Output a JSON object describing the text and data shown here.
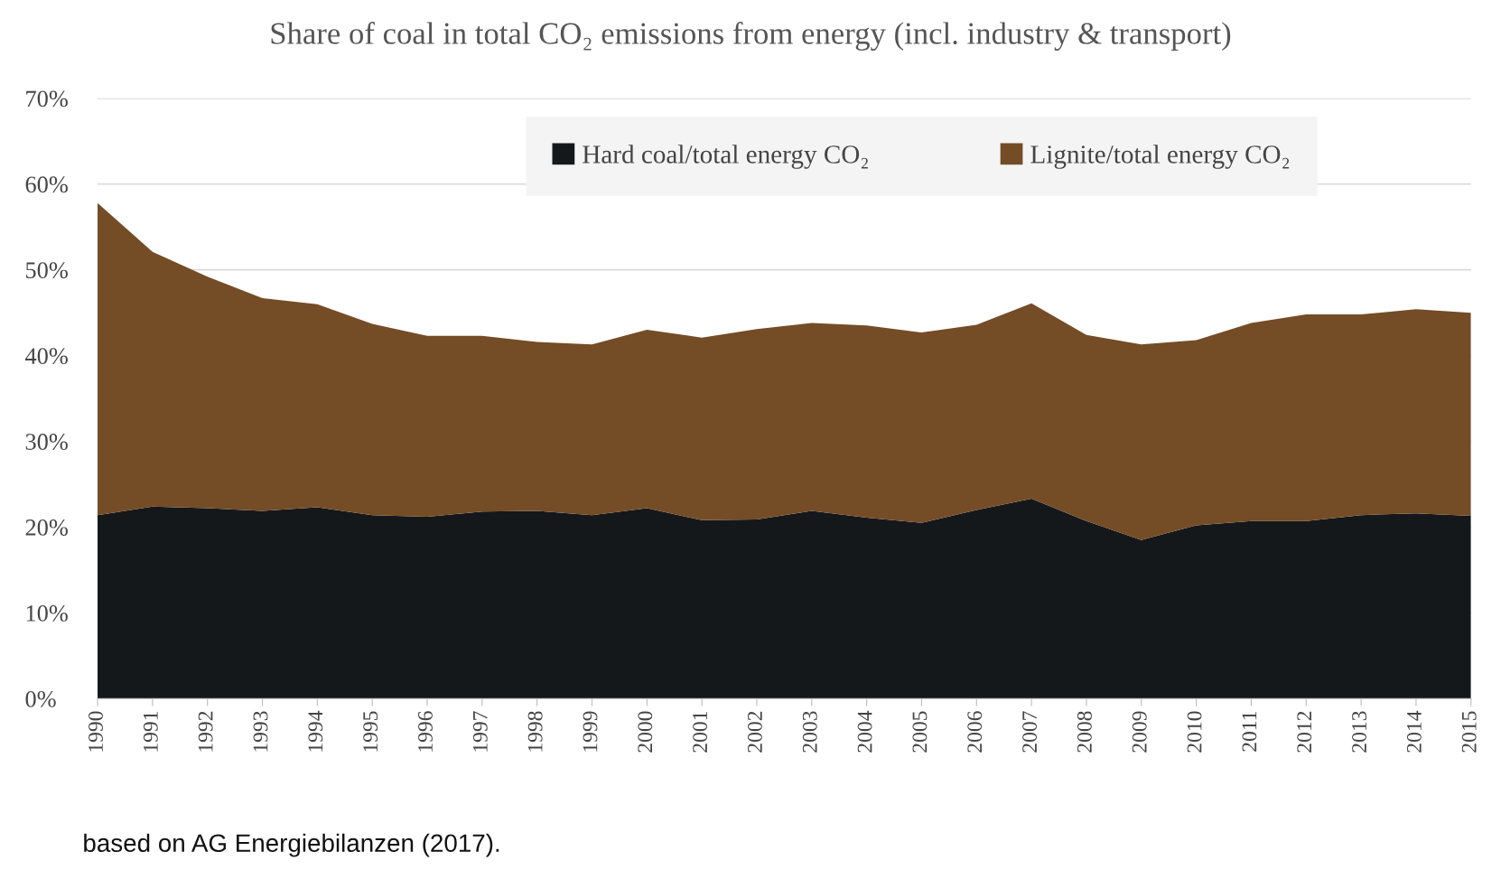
{
  "chart_data": {
    "type": "area",
    "stacked": true,
    "title": "Share of coal in total CO₂ emissions from energy (incl. industry & transport)",
    "categories": [
      "1990",
      "1991",
      "1992",
      "1993",
      "1994",
      "1995",
      "1996",
      "1997",
      "1998",
      "1999",
      "2000",
      "2001",
      "2002",
      "2003",
      "2004",
      "2005",
      "2006",
      "2007",
      "2008",
      "2009",
      "2010",
      "2011",
      "2012",
      "2013",
      "2014",
      "2015"
    ],
    "series": [
      {
        "name": "Hard coal/total energy CO₂",
        "color": "#15181b",
        "values": [
          21.4,
          22.4,
          22.2,
          21.9,
          22.3,
          21.4,
          21.2,
          21.8,
          21.9,
          21.4,
          22.2,
          20.8,
          20.9,
          21.9,
          21.1,
          20.5,
          22.0,
          23.3,
          20.7,
          18.5,
          20.2,
          20.7,
          20.7,
          21.4,
          21.6,
          21.3
        ]
      },
      {
        "name": "Lignite/total energy CO₂",
        "color": "#744c26",
        "values": [
          36.4,
          29.7,
          27.0,
          24.8,
          23.7,
          22.3,
          21.1,
          20.5,
          19.7,
          19.9,
          20.8,
          21.3,
          22.2,
          21.9,
          22.4,
          22.2,
          21.6,
          22.8,
          21.7,
          22.8,
          21.6,
          23.1,
          24.1,
          23.4,
          23.8,
          23.7
        ]
      }
    ],
    "ylim": [
      0,
      70
    ],
    "yticks": [
      {
        "value": 0,
        "label": "0%"
      },
      {
        "value": 10,
        "label": "10%"
      },
      {
        "value": 20,
        "label": "20%"
      },
      {
        "value": 30,
        "label": "30%"
      },
      {
        "value": 40,
        "label": "40%"
      },
      {
        "value": 50,
        "label": "50%"
      },
      {
        "value": 60,
        "label": "60%"
      },
      {
        "value": 70,
        "label": "70%"
      }
    ],
    "grid": "y",
    "legend": "top",
    "annotations": [
      "based on AG Energiebilanzen (2017)."
    ]
  }
}
